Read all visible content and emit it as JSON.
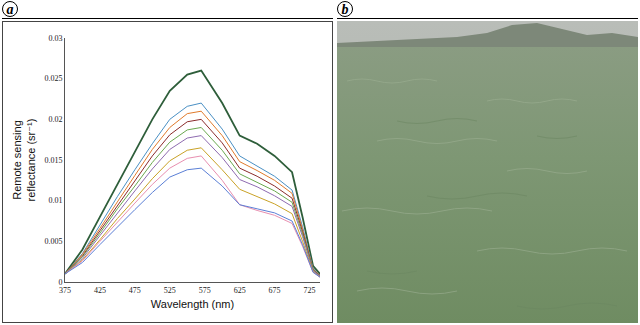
{
  "panel_labels": [
    "a",
    "b"
  ],
  "chart_data": {
    "type": "line",
    "x_label": "Wavelength (nm)",
    "y_label": "Remote sensing reflectance (sr⁻¹)",
    "x": [
      375,
      400,
      425,
      450,
      475,
      500,
      525,
      550,
      570,
      600,
      625,
      650,
      675,
      700,
      715,
      730,
      740
    ],
    "xlim": [
      375,
      740
    ],
    "xticks": [
      375,
      425,
      475,
      525,
      575,
      625,
      675,
      725
    ],
    "ylim": [
      0,
      0.03
    ],
    "yticks": [
      0,
      0.005,
      0.01,
      0.015,
      0.02,
      0.025,
      0.03
    ],
    "grid": false,
    "series": [
      {
        "color": "#2e5e3a",
        "values": [
          0.001,
          0.004,
          0.008,
          0.012,
          0.016,
          0.02,
          0.0235,
          0.0255,
          0.026,
          0.022,
          0.018,
          0.017,
          0.0155,
          0.0135,
          0.008,
          0.002,
          0.001
        ]
      },
      {
        "color": "#4a90c4",
        "values": [
          0.001,
          0.0035,
          0.007,
          0.0105,
          0.0138,
          0.017,
          0.02,
          0.0216,
          0.022,
          0.0188,
          0.0155,
          0.0143,
          0.013,
          0.0113,
          0.0068,
          0.0017,
          0.0008
        ]
      },
      {
        "color": "#e07b2c",
        "values": [
          0.001,
          0.0034,
          0.0066,
          0.0099,
          0.0131,
          0.0163,
          0.019,
          0.0207,
          0.021,
          0.018,
          0.0148,
          0.0137,
          0.0125,
          0.0109,
          0.0065,
          0.0016,
          0.0008
        ]
      },
      {
        "color": "#8b2c2c",
        "values": [
          0.001,
          0.0032,
          0.0063,
          0.0094,
          0.0124,
          0.0155,
          0.0181,
          0.0197,
          0.02,
          0.0171,
          0.014,
          0.013,
          0.0118,
          0.0103,
          0.0062,
          0.0015,
          0.0008
        ]
      },
      {
        "color": "#6aa84f",
        "values": [
          0.001,
          0.0031,
          0.006,
          0.009,
          0.0118,
          0.0147,
          0.0172,
          0.0187,
          0.019,
          0.0162,
          0.0133,
          0.0123,
          0.0112,
          0.0098,
          0.0059,
          0.0015,
          0.0007
        ]
      },
      {
        "color": "#8e6bb0",
        "values": [
          0.001,
          0.0029,
          0.0057,
          0.0085,
          0.0112,
          0.0139,
          0.0163,
          0.0177,
          0.018,
          0.0153,
          0.0126,
          0.0117,
          0.0106,
          0.0093,
          0.0056,
          0.0014,
          0.0007
        ]
      },
      {
        "color": "#c9a227",
        "values": [
          0.001,
          0.0027,
          0.0052,
          0.0078,
          0.0102,
          0.0127,
          0.0149,
          0.0162,
          0.0165,
          0.0138,
          0.0114,
          0.0105,
          0.0096,
          0.0084,
          0.005,
          0.0013,
          0.0006
        ]
      },
      {
        "color": "#e88fb0",
        "values": [
          0.001,
          0.0026,
          0.005,
          0.0074,
          0.0097,
          0.012,
          0.014,
          0.0152,
          0.0155,
          0.0125,
          0.0095,
          0.0088,
          0.0082,
          0.0072,
          0.0044,
          0.0012,
          0.0006
        ]
      },
      {
        "color": "#5b7fd6",
        "values": [
          0.001,
          0.0024,
          0.0046,
          0.0068,
          0.0089,
          0.011,
          0.0129,
          0.0138,
          0.014,
          0.0118,
          0.0095,
          0.009,
          0.0085,
          0.0075,
          0.0046,
          0.0012,
          0.0006
        ]
      }
    ]
  }
}
